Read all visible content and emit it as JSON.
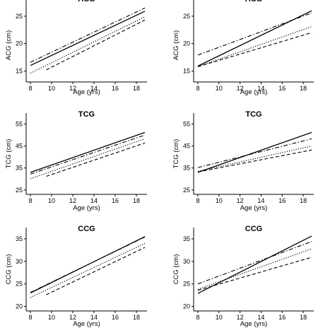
{
  "chart_data": [
    {
      "type": "line",
      "title": "ACG",
      "xlabel": "Age (yrs)",
      "ylabel": "ACG (cm)",
      "xlim": [
        7.6,
        19
      ],
      "ylim": [
        13,
        29.5
      ],
      "xticks": [
        8,
        10,
        12,
        14,
        16,
        18
      ],
      "yticks": [
        15,
        20,
        25
      ],
      "grid": false,
      "series": [
        {
          "style": "solid",
          "x": [
            8,
            18.8
          ],
          "y": [
            16.0,
            25.9
          ]
        },
        {
          "style": "dashdot",
          "x": [
            8,
            18.8
          ],
          "y": [
            16.6,
            26.5
          ]
        },
        {
          "style": "dotted",
          "x": [
            8,
            18.8
          ],
          "y": [
            14.6,
            24.9
          ]
        },
        {
          "style": "dashed",
          "x": [
            9.5,
            18.8
          ],
          "y": [
            15.2,
            24.3
          ]
        }
      ]
    },
    {
      "type": "line",
      "title": "ACG",
      "xlabel": "Age (yrs)",
      "ylabel": "ACG (cm)",
      "xlim": [
        7.6,
        19
      ],
      "ylim": [
        13,
        29.5
      ],
      "xticks": [
        8,
        10,
        12,
        14,
        16,
        18
      ],
      "yticks": [
        15,
        20,
        25
      ],
      "grid": false,
      "series": [
        {
          "style": "solid",
          "x": [
            8,
            18.8
          ],
          "y": [
            15.9,
            26.0
          ]
        },
        {
          "style": "dashdot",
          "x": [
            8,
            18.8
          ],
          "y": [
            17.9,
            25.6
          ]
        },
        {
          "style": "dotted",
          "x": [
            8,
            18.8
          ],
          "y": [
            15.8,
            23.1
          ]
        },
        {
          "style": "dashed",
          "x": [
            8,
            18.8
          ],
          "y": [
            15.8,
            22.0
          ]
        }
      ]
    },
    {
      "type": "line",
      "title": "TCG",
      "xlabel": "Age (yrs)",
      "ylabel": "TCG (cm)",
      "xlim": [
        7.6,
        19
      ],
      "ylim": [
        23,
        60
      ],
      "xticks": [
        8,
        10,
        12,
        14,
        16,
        18
      ],
      "yticks": [
        25,
        35,
        45,
        55
      ],
      "grid": false,
      "series": [
        {
          "style": "solid",
          "x": [
            8,
            18.8
          ],
          "y": [
            33.0,
            51.2
          ]
        },
        {
          "style": "dashdot",
          "x": [
            8,
            18.8
          ],
          "y": [
            32.2,
            50.0
          ]
        },
        {
          "style": "dotted",
          "x": [
            8,
            18.8
          ],
          "y": [
            30.1,
            48.3
          ]
        },
        {
          "style": "dashed",
          "x": [
            9.5,
            18.8
          ],
          "y": [
            31.2,
            46.4
          ]
        }
      ]
    },
    {
      "type": "line",
      "title": "TCG",
      "xlabel": "Age (yrs)",
      "ylabel": "TCG (cm)",
      "xlim": [
        7.6,
        19
      ],
      "ylim": [
        23,
        60
      ],
      "xticks": [
        8,
        10,
        12,
        14,
        16,
        18
      ],
      "yticks": [
        25,
        35,
        45,
        55
      ],
      "grid": false,
      "series": [
        {
          "style": "solid",
          "x": [
            8,
            18.8
          ],
          "y": [
            33.0,
            51.2
          ]
        },
        {
          "style": "dashdot",
          "x": [
            8,
            18.8
          ],
          "y": [
            35.2,
            48.3
          ]
        },
        {
          "style": "dotted",
          "x": [
            8,
            18.8
          ],
          "y": [
            33.5,
            45.0
          ]
        },
        {
          "style": "dashed",
          "x": [
            8,
            18.8
          ],
          "y": [
            33.2,
            43.2
          ]
        }
      ]
    },
    {
      "type": "line",
      "title": "CCG",
      "xlabel": "Age (yrs)",
      "ylabel": "CCG (cm)",
      "xlim": [
        7.6,
        19
      ],
      "ylim": [
        19,
        37.5
      ],
      "xticks": [
        8,
        10,
        12,
        14,
        16,
        18
      ],
      "yticks": [
        20,
        25,
        30,
        35
      ],
      "grid": false,
      "series": [
        {
          "style": "solid",
          "x": [
            8,
            18.8
          ],
          "y": [
            23.0,
            35.5
          ]
        },
        {
          "style": "dashdot",
          "x": [
            8,
            18.8
          ],
          "y": [
            23.1,
            35.4
          ]
        },
        {
          "style": "dotted",
          "x": [
            8,
            18.8
          ],
          "y": [
            22.0,
            34.0
          ]
        },
        {
          "style": "dashed",
          "x": [
            9.5,
            18.8
          ],
          "y": [
            22.6,
            33.1
          ]
        }
      ]
    },
    {
      "type": "line",
      "title": "CCG",
      "xlabel": "Age (yrs)",
      "ylabel": "CCG (cm)",
      "xlim": [
        7.6,
        19
      ],
      "ylim": [
        19,
        37.5
      ],
      "xticks": [
        8,
        10,
        12,
        14,
        16,
        18
      ],
      "yticks": [
        20,
        25,
        30,
        35
      ],
      "grid": false,
      "series": [
        {
          "style": "solid",
          "x": [
            8,
            18.8
          ],
          "y": [
            22.9,
            35.6
          ]
        },
        {
          "style": "dashdot",
          "x": [
            8,
            18.8
          ],
          "y": [
            25.0,
            34.4
          ]
        },
        {
          "style": "dotted",
          "x": [
            8,
            18.8
          ],
          "y": [
            23.8,
            32.8
          ]
        },
        {
          "style": "dashed",
          "x": [
            8,
            18.8
          ],
          "y": [
            23.6,
            30.9
          ]
        }
      ]
    }
  ]
}
